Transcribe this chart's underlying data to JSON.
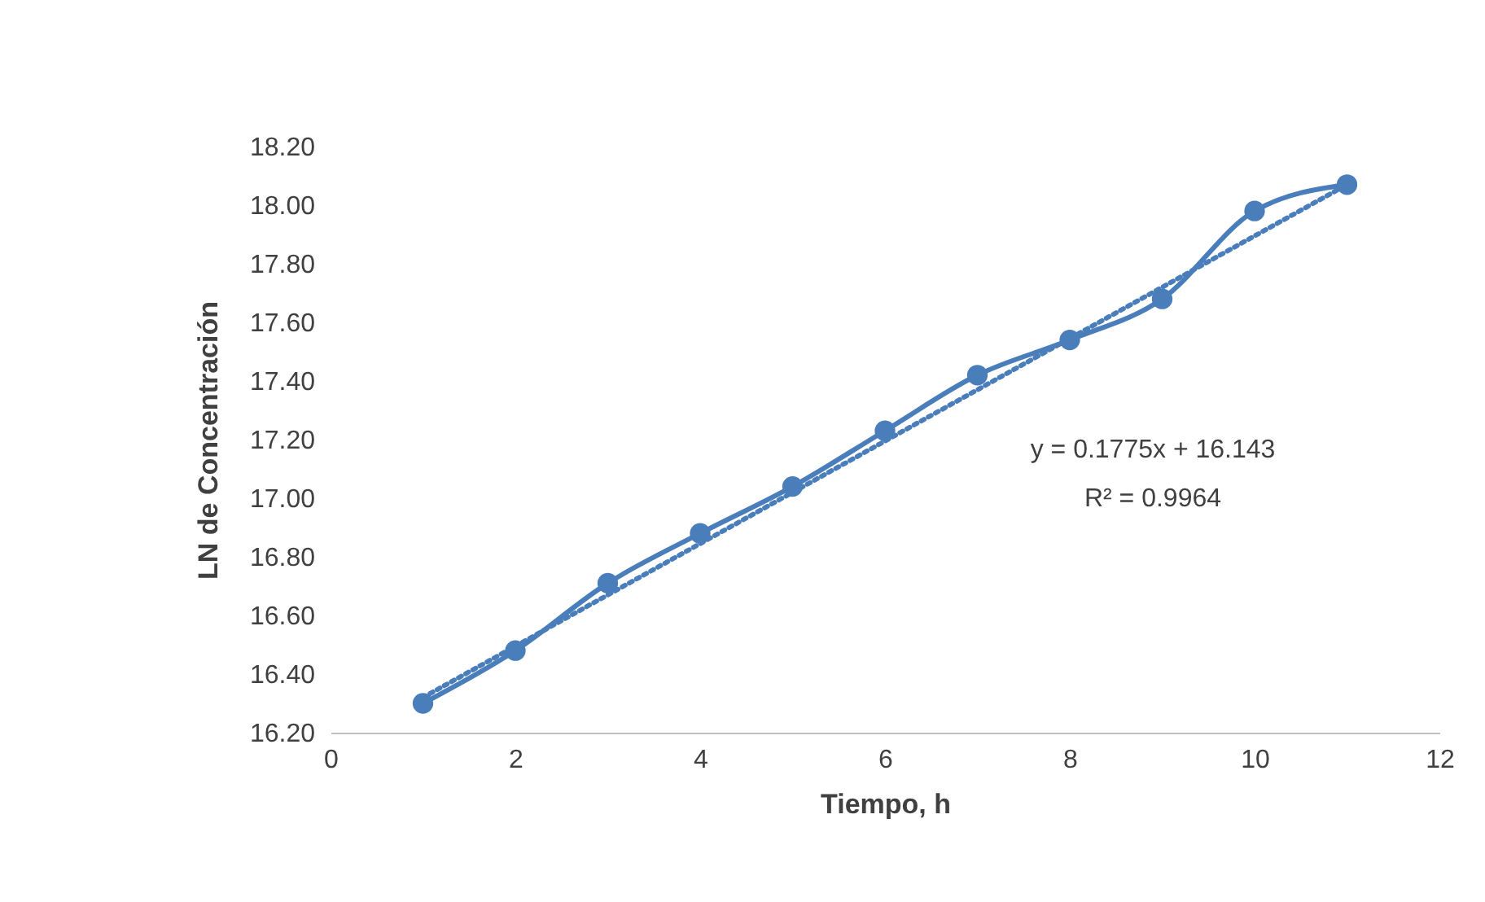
{
  "chart_data": {
    "type": "line",
    "xlabel": "Tiempo, h",
    "ylabel": "LN de Concentración",
    "xlim": [
      0,
      12
    ],
    "xticks": [
      0,
      2,
      4,
      6,
      8,
      10,
      12
    ],
    "ylim": [
      16.2,
      18.2
    ],
    "yticks": [
      {
        "value": 16.2,
        "label": "16.20"
      },
      {
        "value": 16.4,
        "label": "16.40"
      },
      {
        "value": 16.6,
        "label": "16.60"
      },
      {
        "value": 16.8,
        "label": "16.80"
      },
      {
        "value": 17.0,
        "label": "17.00"
      },
      {
        "value": 17.2,
        "label": "17.20"
      },
      {
        "value": 17.4,
        "label": "17.40"
      },
      {
        "value": 17.6,
        "label": "17.60"
      },
      {
        "value": 17.8,
        "label": "17.80"
      },
      {
        "value": 18.0,
        "label": "18.00"
      },
      {
        "value": 18.2,
        "label": "18.20"
      }
    ],
    "grid": false,
    "legend": false,
    "series": [
      {
        "color": "#4a7ebb",
        "marker": "circle",
        "line_style": "solid",
        "x": [
          1,
          2,
          3,
          4,
          5,
          6,
          7,
          8,
          9,
          10,
          11
        ],
        "values": [
          16.3,
          16.48,
          16.71,
          16.88,
          17.04,
          17.23,
          17.42,
          17.54,
          17.68,
          17.98,
          18.07
        ]
      },
      {
        "color": "#4a7ebb",
        "marker": "none",
        "line_style": "dotted",
        "x": [
          1,
          11
        ],
        "values": [
          16.32,
          18.07
        ]
      }
    ],
    "annotations": [
      "y = 0.1775x + 16.143",
      "R² = 0.9964"
    ]
  }
}
